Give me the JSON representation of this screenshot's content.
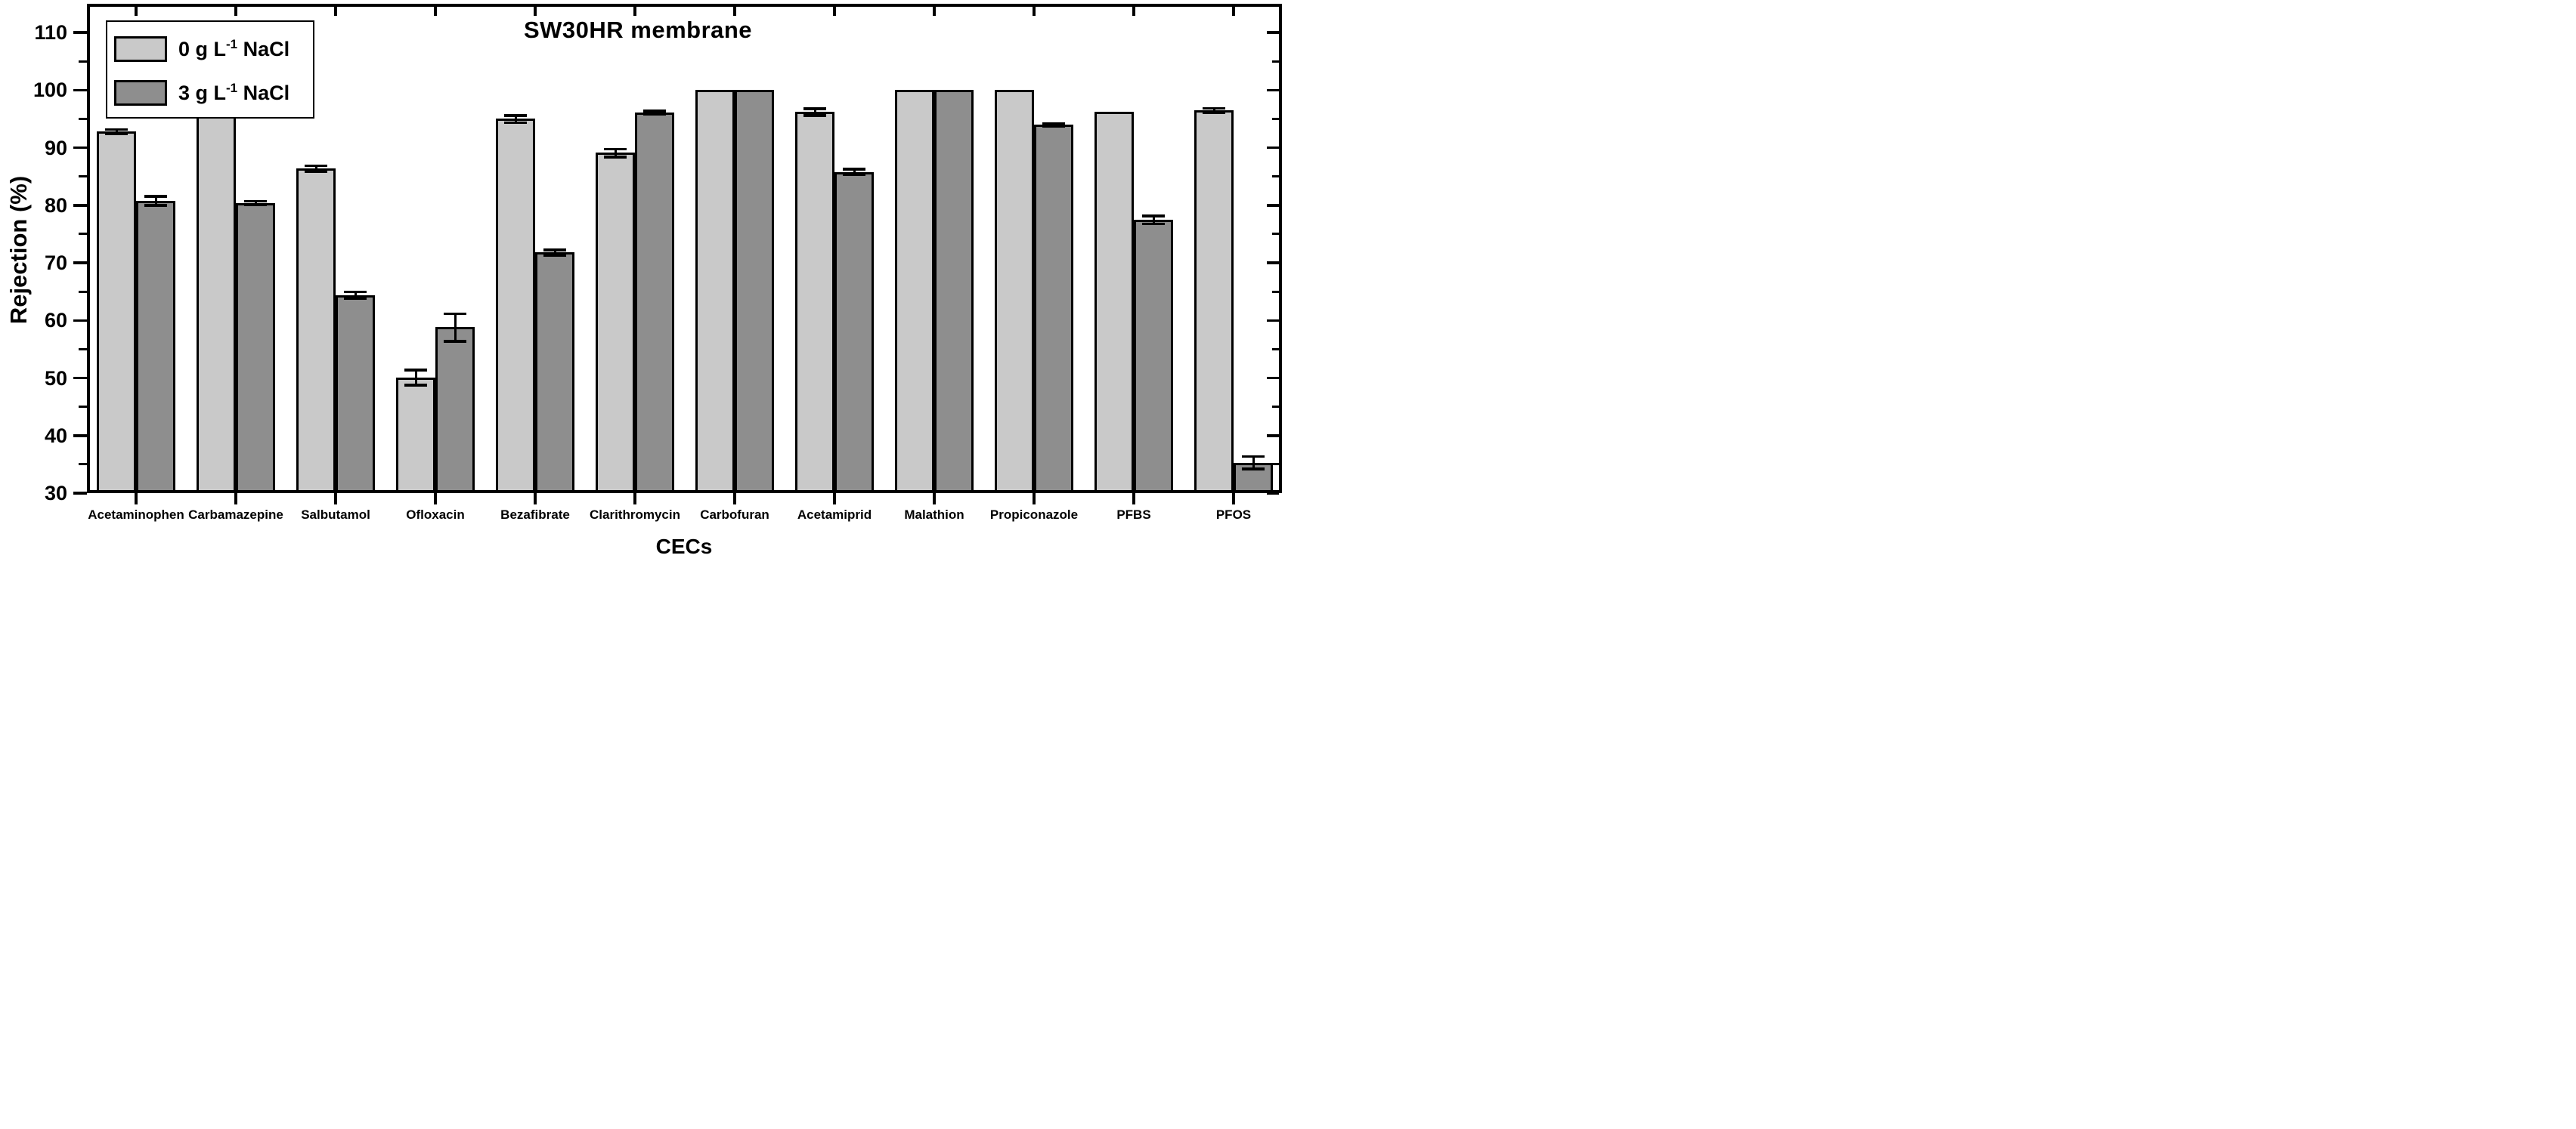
{
  "chart_data": {
    "type": "bar",
    "title": "SW30HR membrane",
    "xlabel": "CECs",
    "ylabel": "Rejection (%)",
    "ylim": [
      30,
      115
    ],
    "grid": false,
    "legend_position": "top-left",
    "y_major_ticks": [
      30,
      40,
      50,
      60,
      70,
      80,
      90,
      100,
      110
    ],
    "y_minor_ticks": [
      35,
      45,
      55,
      65,
      75,
      85,
      95,
      105
    ],
    "categories": [
      "Acetaminophen",
      "Carbamazepine",
      "Salbutamol",
      "Ofloxacin",
      "Bezafibrate",
      "Clarithromycin",
      "Carbofuran",
      "Acetamiprid",
      "Malathion",
      "Propiconazole",
      "PFBS",
      "PFOS"
    ],
    "series": [
      {
        "name": "0 g L⁻¹ NaCl",
        "color": "#c9c9c9",
        "values": [
          92.8,
          96.5,
          86.4,
          50.1,
          95.0,
          89.1,
          100,
          96.2,
          100,
          100,
          96.2,
          96.5
        ],
        "errors": [
          0.4,
          0.25,
          0.5,
          1.3,
          0.6,
          0.7,
          0,
          0.6,
          0,
          0,
          0,
          0.35
        ]
      },
      {
        "name": "3 g L⁻¹ NaCl",
        "color": "#8e8e8e",
        "values": [
          80.8,
          80.4,
          64.4,
          58.8,
          71.8,
          96.1,
          100,
          85.8,
          100,
          94.0,
          77.5,
          35.3
        ],
        "errors": [
          0.8,
          0.35,
          0.6,
          2.4,
          0.5,
          0.3,
          0,
          0.5,
          0,
          0.25,
          0.7,
          1.1
        ]
      }
    ]
  },
  "legend": {
    "entries": [
      {
        "pre": "0 g L",
        "sup": "-1",
        "post": " NaCl"
      },
      {
        "pre": "3 g L",
        "sup": "-1",
        "post": " NaCl"
      }
    ]
  },
  "colors": {
    "bar_light": "#c9c9c9",
    "bar_dark": "#8e8e8e",
    "axis": "#000000",
    "background": "#ffffff"
  }
}
